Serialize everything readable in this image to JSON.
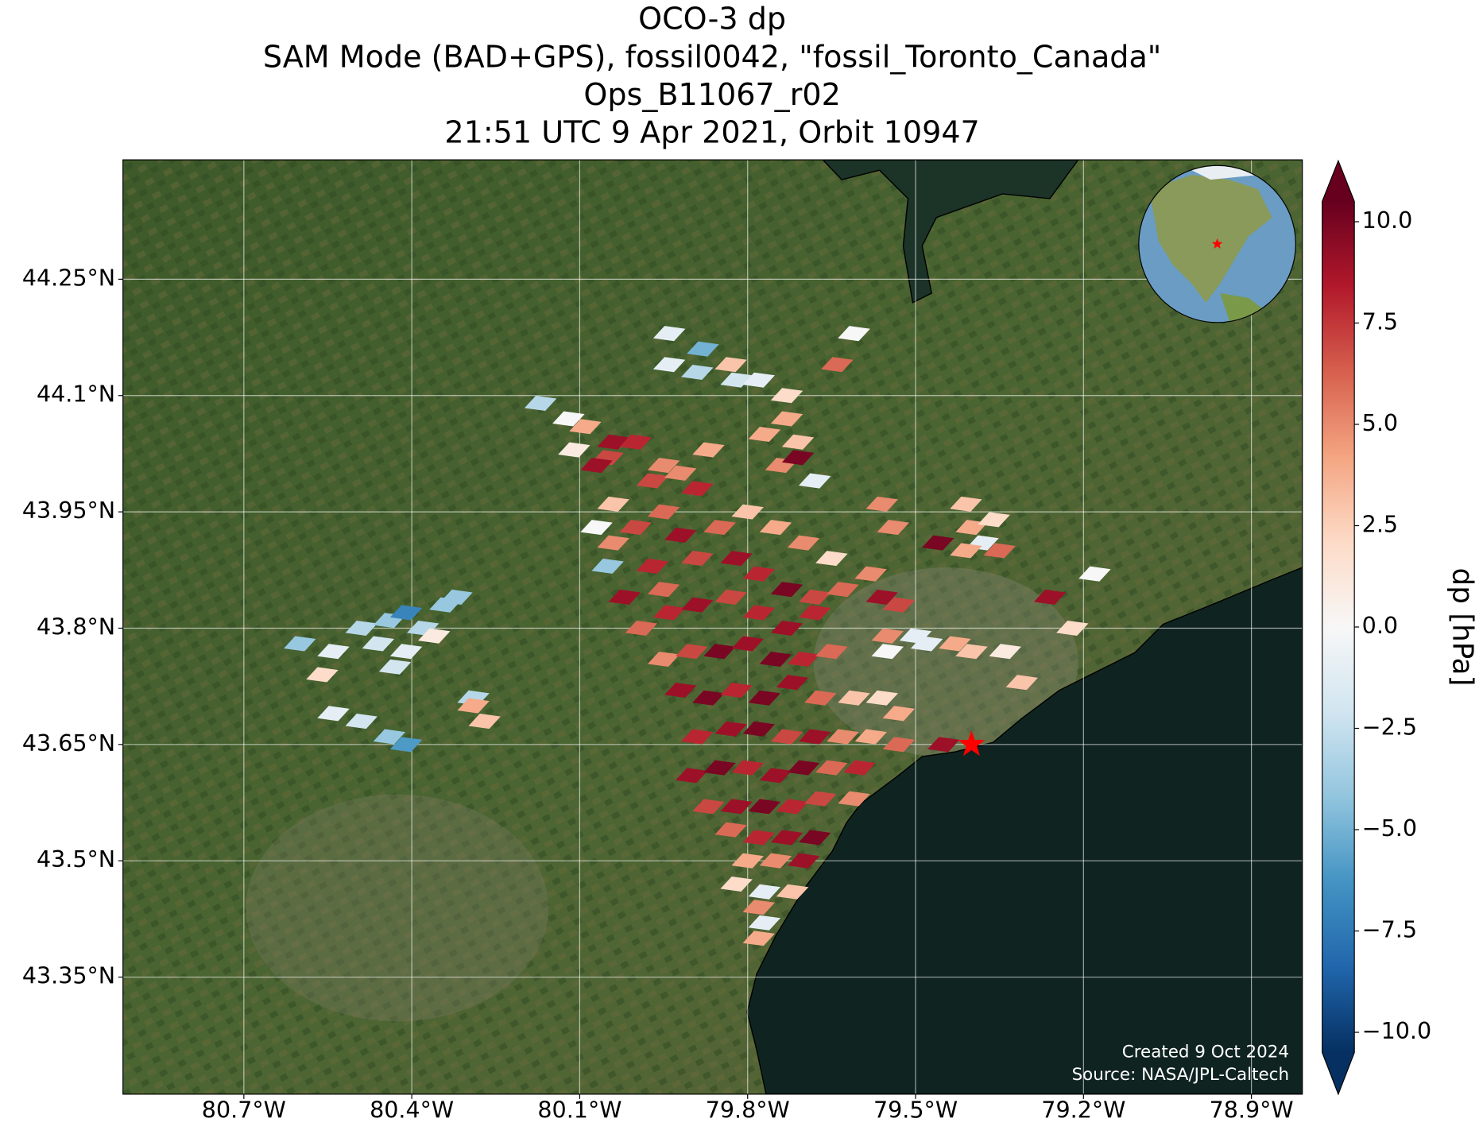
{
  "chart_data": {
    "type": "map",
    "title": [
      "OCO-3 dp",
      "SAM Mode (BAD+GPS), fossil0042, \"fossil_Toronto_Canada\"",
      "Ops_B11067_r02",
      "21:51 UTC 9 Apr 2021, Orbit 10947"
    ],
    "xlim": [
      -80.916,
      -78.809
    ],
    "ylim": [
      43.199,
      44.404
    ],
    "xticks": [
      {
        "value": -80.7,
        "label": "80.7°W"
      },
      {
        "value": -80.4,
        "label": "80.4°W"
      },
      {
        "value": -80.1,
        "label": "80.1°W"
      },
      {
        "value": -79.8,
        "label": "79.8°W"
      },
      {
        "value": -79.5,
        "label": "79.5°W"
      },
      {
        "value": -79.2,
        "label": "79.2°W"
      },
      {
        "value": -78.9,
        "label": "78.9°W"
      }
    ],
    "yticks": [
      {
        "value": 43.35,
        "label": "43.35°N"
      },
      {
        "value": 43.5,
        "label": "43.5°N"
      },
      {
        "value": 43.65,
        "label": "43.65°N"
      },
      {
        "value": 43.8,
        "label": "43.8°N"
      },
      {
        "value": 43.95,
        "label": "43.95°N"
      },
      {
        "value": 44.1,
        "label": "44.1°N"
      },
      {
        "value": 44.25,
        "label": "44.25°N"
      }
    ],
    "grid": true,
    "colorbar_label": "dp [hPa]",
    "clim": [
      -10.5,
      10.5
    ],
    "cticks": [
      {
        "value": -10,
        "label": "−10.0"
      },
      {
        "value": -7.5,
        "label": "−7.5"
      },
      {
        "value": -5,
        "label": "−5.0"
      },
      {
        "value": -2.5,
        "label": "−2.5"
      },
      {
        "value": 0,
        "label": "0.0"
      },
      {
        "value": 2.5,
        "label": "2.5"
      },
      {
        "value": 5,
        "label": "5.0"
      },
      {
        "value": 7.5,
        "label": "7.5"
      },
      {
        "value": 10,
        "label": "10.0"
      }
    ],
    "colormap": [
      "#053061",
      "#2166ac",
      "#4393c3",
      "#92c5de",
      "#d1e5f0",
      "#f7f7f7",
      "#fddbc7",
      "#f4a582",
      "#d6604d",
      "#b2182b",
      "#67001f"
    ],
    "soundings": {
      "lon": [
        -80.6,
        -80.54,
        -80.49,
        -80.44,
        -80.41,
        -80.38,
        -80.34,
        -80.46,
        -80.41,
        -80.36,
        -80.32,
        -80.43,
        -80.56,
        -80.54,
        -80.49,
        -80.44,
        -80.41,
        -80.29,
        -80.29,
        -80.27,
        -79.94,
        -79.94,
        -79.88,
        -79.89,
        -79.83,
        -79.82,
        -79.78,
        -79.73,
        -79.73,
        -79.71,
        -79.77,
        -79.74,
        -79.71,
        -79.87,
        -79.61,
        -79.64,
        -79.68,
        -80.17,
        -80.12,
        -80.09,
        -80.04,
        -80.05,
        -80.11,
        -80.07,
        -80.0,
        -79.95,
        -79.97,
        -79.92,
        -79.89,
        -80.04,
        -80.07,
        -80.04,
        -80.05,
        -80.0,
        -79.95,
        -79.92,
        -79.97,
        -80.02,
        -79.95,
        -79.89,
        -79.85,
        -79.8,
        -79.75,
        -79.7,
        -79.65,
        -79.82,
        -79.78,
        -79.73,
        -79.68,
        -79.63,
        -79.58,
        -79.53,
        -79.55,
        -79.48,
        -79.43,
        -79.99,
        -79.94,
        -79.89,
        -79.83,
        -79.78,
        -79.73,
        -79.68,
        -79.95,
        -79.9,
        -79.85,
        -79.8,
        -79.75,
        -79.7,
        -79.65,
        -79.92,
        -79.87,
        -79.82,
        -79.77,
        -79.72,
        -79.67,
        -79.61,
        -79.56,
        -79.53,
        -79.89,
        -79.83,
        -79.78,
        -79.73,
        -79.68,
        -79.63,
        -79.58,
        -79.53,
        -79.9,
        -79.85,
        -79.8,
        -79.75,
        -79.7,
        -79.65,
        -79.6,
        -79.87,
        -79.82,
        -79.77,
        -79.72,
        -79.67,
        -79.61,
        -79.83,
        -79.78,
        -79.73,
        -79.68,
        -79.8,
        -79.75,
        -79.7,
        -79.82,
        -79.77,
        -79.72,
        -79.78,
        -79.77,
        -79.78,
        -79.45,
        -79.4,
        -79.34,
        -79.31,
        -79.26,
        -79.22,
        -79.18,
        -79.41,
        -79.4,
        -79.36,
        -79.38,
        -79.46,
        -79.41,
        -79.54,
        -79.56,
        -79.35,
        -79.5,
        -79.55,
        -79.56
      ],
      "lat": [
        43.78,
        43.77,
        43.8,
        43.81,
        43.82,
        43.8,
        43.83,
        43.78,
        43.77,
        43.79,
        43.84,
        43.75,
        43.74,
        43.69,
        43.68,
        43.66,
        43.65,
        43.71,
        43.7,
        43.68,
        44.18,
        44.14,
        44.16,
        44.13,
        44.14,
        44.12,
        44.12,
        44.1,
        44.07,
        44.04,
        44.05,
        44.01,
        44.02,
        44.03,
        44.18,
        44.14,
        43.99,
        44.09,
        44.07,
        44.06,
        44.04,
        44.02,
        44.03,
        44.01,
        44.04,
        44.01,
        43.99,
        44.0,
        43.98,
        43.96,
        43.93,
        43.91,
        43.88,
        43.93,
        43.95,
        43.92,
        43.88,
        43.84,
        43.85,
        43.89,
        43.93,
        43.95,
        43.93,
        43.91,
        43.89,
        43.89,
        43.87,
        43.85,
        43.84,
        43.85,
        43.87,
        43.83,
        43.79,
        43.78,
        43.78,
        43.8,
        43.82,
        43.83,
        43.84,
        43.82,
        43.8,
        43.82,
        43.76,
        43.77,
        43.77,
        43.78,
        43.76,
        43.76,
        43.77,
        43.72,
        43.71,
        43.72,
        43.71,
        43.73,
        43.71,
        43.71,
        43.71,
        43.69,
        43.66,
        43.67,
        43.67,
        43.66,
        43.66,
        43.66,
        43.66,
        43.65,
        43.61,
        43.62,
        43.62,
        43.61,
        43.62,
        43.62,
        43.62,
        43.57,
        43.57,
        43.57,
        43.57,
        43.58,
        43.58,
        43.54,
        43.53,
        43.53,
        43.53,
        43.5,
        43.5,
        43.5,
        43.47,
        43.46,
        43.46,
        43.44,
        43.42,
        43.4,
        43.65,
        43.77,
        43.77,
        43.73,
        43.84,
        43.8,
        43.87,
        43.96,
        43.93,
        43.94,
        43.91,
        43.91,
        43.9,
        43.93,
        43.96,
        43.9,
        43.79,
        43.77,
        43.84
      ],
      "values": [
        -4,
        -1,
        -3,
        -4,
        -7,
        -3,
        -4,
        -2,
        -1,
        1,
        -4,
        -2,
        2,
        -1,
        -2,
        -4,
        -6,
        -3,
        4,
        3,
        -1,
        -1,
        -5,
        -3,
        3,
        -2,
        -1,
        2,
        4,
        3,
        4,
        5,
        10,
        4,
        0,
        6,
        -1,
        -3,
        0,
        4,
        9,
        7,
        1,
        9,
        8,
        5,
        7,
        5,
        8,
        3,
        0,
        5,
        -4,
        7,
        6,
        9,
        8,
        9,
        6,
        7,
        6,
        3,
        4,
        5,
        2,
        9,
        8,
        10,
        7,
        6,
        5,
        7,
        5,
        -1,
        4,
        6,
        8,
        9,
        7,
        8,
        9,
        8,
        5,
        7,
        10,
        9,
        10,
        8,
        6,
        9,
        10,
        8,
        10,
        9,
        6,
        3,
        2,
        4,
        8,
        9,
        10,
        7,
        9,
        5,
        4,
        6,
        9,
        10,
        8,
        9,
        10,
        6,
        8,
        7,
        9,
        10,
        8,
        7,
        5,
        6,
        8,
        9,
        10,
        4,
        5,
        9,
        2,
        -1,
        3,
        5,
        -1,
        4,
        9,
        3,
        1,
        3,
        9,
        2,
        0,
        3,
        4,
        2,
        -1,
        10,
        4,
        5,
        5,
        6,
        -1,
        0,
        9
      ]
    },
    "target": {
      "lon": -79.4,
      "lat": 43.65
    },
    "footer": [
      "Created 9 Oct 2024",
      "Source: NASA/JPL-Caltech"
    ]
  }
}
